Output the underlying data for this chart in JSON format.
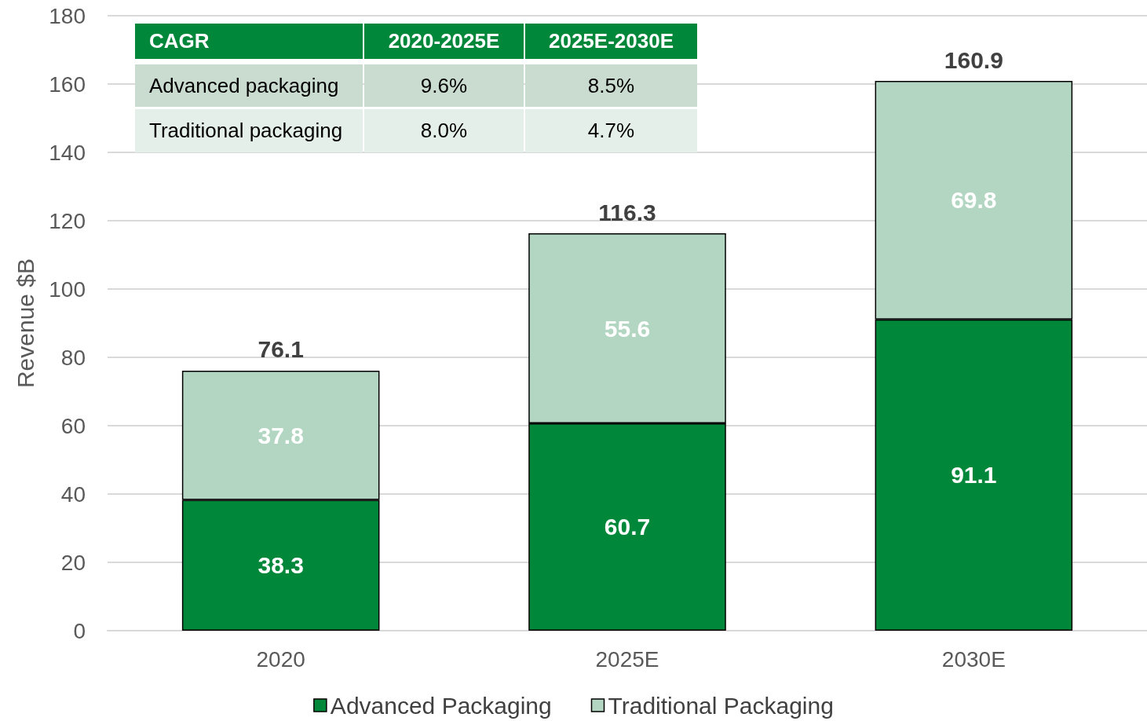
{
  "chart_data": {
    "type": "bar",
    "stacked": true,
    "ylabel": "Revenue $B",
    "categories": [
      "2020",
      "2025E",
      "2030E"
    ],
    "series": [
      {
        "name": "Advanced Packaging",
        "color": "#00873a",
        "values": [
          38.3,
          60.7,
          91.1
        ]
      },
      {
        "name": "Traditional Packaging",
        "color": "#b3d6c2",
        "values": [
          37.8,
          55.6,
          69.8
        ]
      }
    ],
    "totals": [
      "76.1",
      "116.3",
      "160.9"
    ],
    "data_labels": true,
    "ylim": [
      0,
      180
    ],
    "yticks": [
      0,
      20,
      40,
      60,
      80,
      100,
      120,
      140,
      160,
      180
    ],
    "grid": "y",
    "legend": "bottom",
    "annotations": [
      "CAGR",
      "2020-2025E",
      "2025E-2030E",
      "Advanced packaging",
      "9.6%",
      "8.5%",
      "Traditional packaging",
      "8.0%",
      "4.7%"
    ]
  }
}
